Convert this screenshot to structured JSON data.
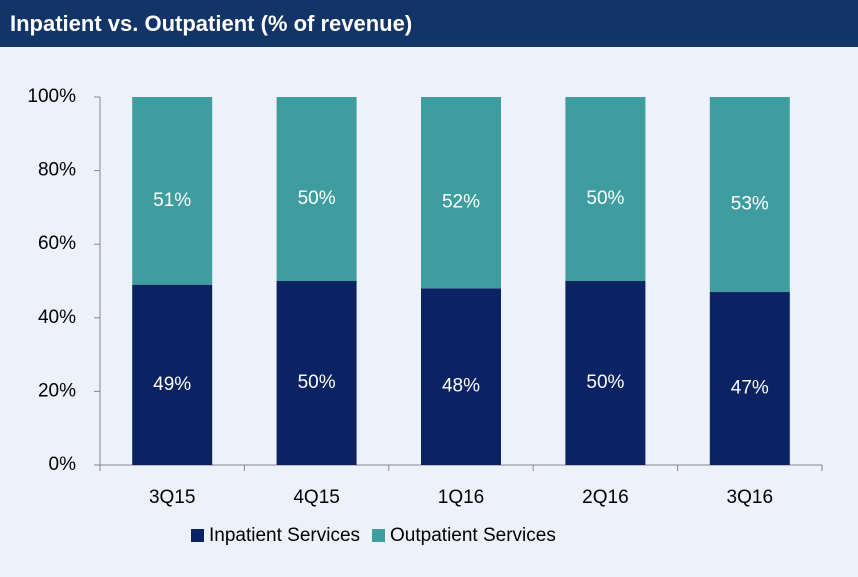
{
  "chart_data": {
    "type": "stacked_bar",
    "title": "Inpatient vs. Outpatient  (% of revenue)",
    "categories": [
      "3Q15",
      "4Q15",
      "1Q16",
      "2Q16",
      "3Q16"
    ],
    "series": [
      {
        "name": "Inpatient Services",
        "color": "#0b2263",
        "values": [
          49,
          50,
          48,
          50,
          47
        ],
        "value_labels": [
          "49%",
          "50%",
          "48%",
          "50%",
          "47%"
        ]
      },
      {
        "name": "Outpatient Services",
        "color": "#3f9c9f",
        "values": [
          51,
          50,
          52,
          50,
          53
        ],
        "value_labels": [
          "51%",
          "50%",
          "52%",
          "50%",
          "53%"
        ]
      }
    ],
    "ylim": [
      0,
      100
    ],
    "yticks": [
      {
        "value": 0,
        "label": "0%"
      },
      {
        "value": 20,
        "label": "20%"
      },
      {
        "value": 40,
        "label": "40%"
      },
      {
        "value": 60,
        "label": "60%"
      },
      {
        "value": 80,
        "label": "80%"
      },
      {
        "value": 100,
        "label": "100%"
      }
    ],
    "legend": "bottom"
  }
}
